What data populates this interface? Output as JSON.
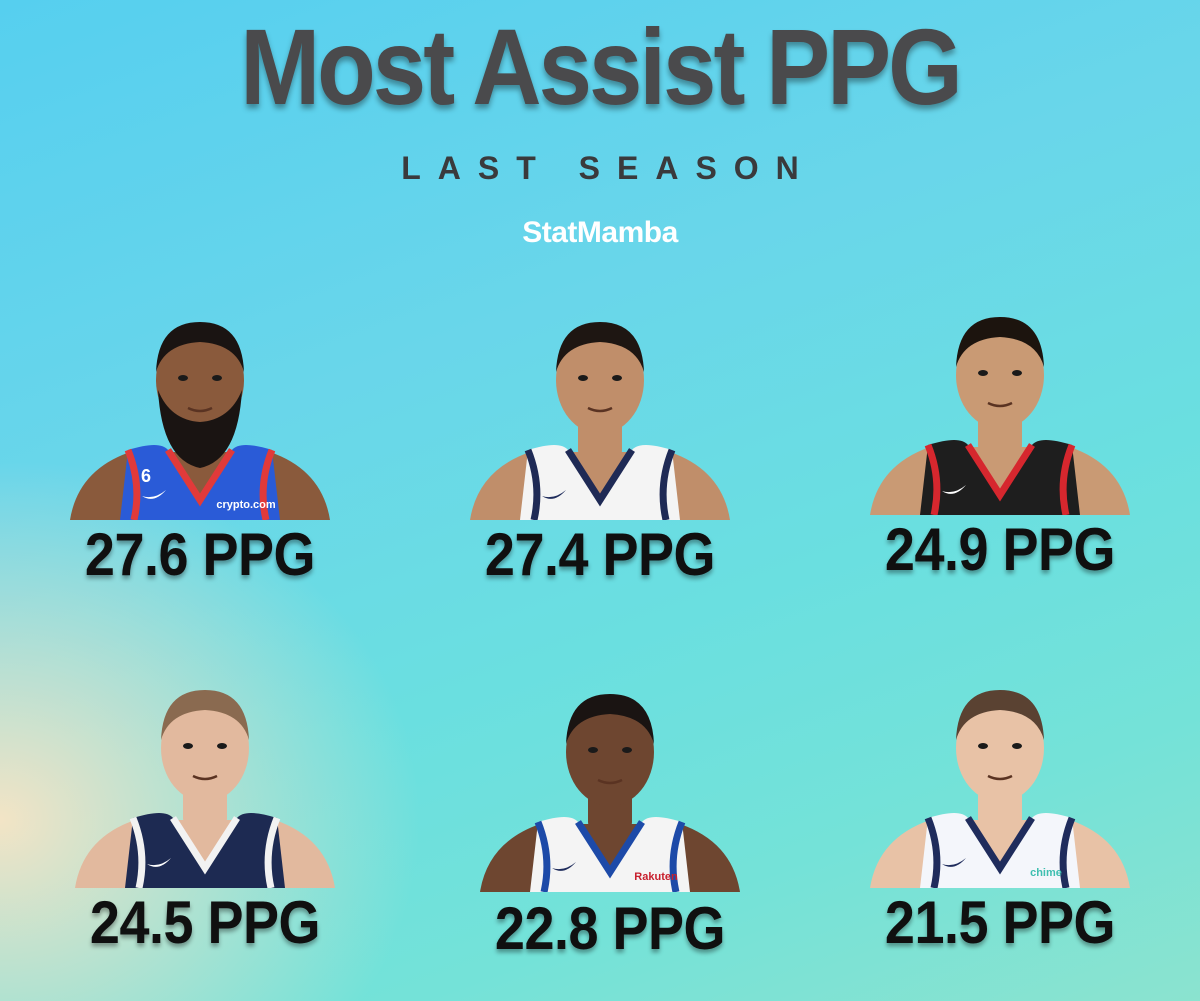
{
  "header": {
    "title": "Most Assist PPG",
    "subtitle": "LAST SEASON",
    "brand": "StatMamba"
  },
  "players": [
    {
      "stat": "27.6 PPG",
      "skin": "#8a5a3c",
      "hair": "#1a1412",
      "beard": true,
      "jersey": "#2a5bd7",
      "trim": "#e13a3a",
      "jersey_text": "crypto.com",
      "number": "6"
    },
    {
      "stat": "27.4 PPG",
      "skin": "#c08e6a",
      "hair": "#1e1612",
      "beard": false,
      "jersey": "#f4f4f4",
      "trim": "#1f2a55",
      "jersey_text": "",
      "number": ""
    },
    {
      "stat": "24.9 PPG",
      "skin": "#c99a74",
      "hair": "#1c140e",
      "beard": false,
      "jersey": "#1e1e1e",
      "trim": "#d6272e",
      "jersey_text": "",
      "number": ""
    },
    {
      "stat": "24.5 PPG",
      "skin": "#e2b99e",
      "hair": "#8a6a50",
      "beard": false,
      "jersey": "#1d2a52",
      "trim": "#f2f2f2",
      "jersey_text": "",
      "number": ""
    },
    {
      "stat": "22.8 PPG",
      "skin": "#6e4630",
      "hair": "#1a1412",
      "beard": false,
      "jersey": "#f4f4f4",
      "trim": "#1d4aa8",
      "jersey_text": "Rakuten",
      "number": ""
    },
    {
      "stat": "21.5 PPG",
      "skin": "#e8c2a6",
      "hair": "#5a4232",
      "beard": false,
      "jersey": "#f4f6fb",
      "trim": "#1f2c5c",
      "jersey_text": "chime",
      "number": ""
    }
  ]
}
